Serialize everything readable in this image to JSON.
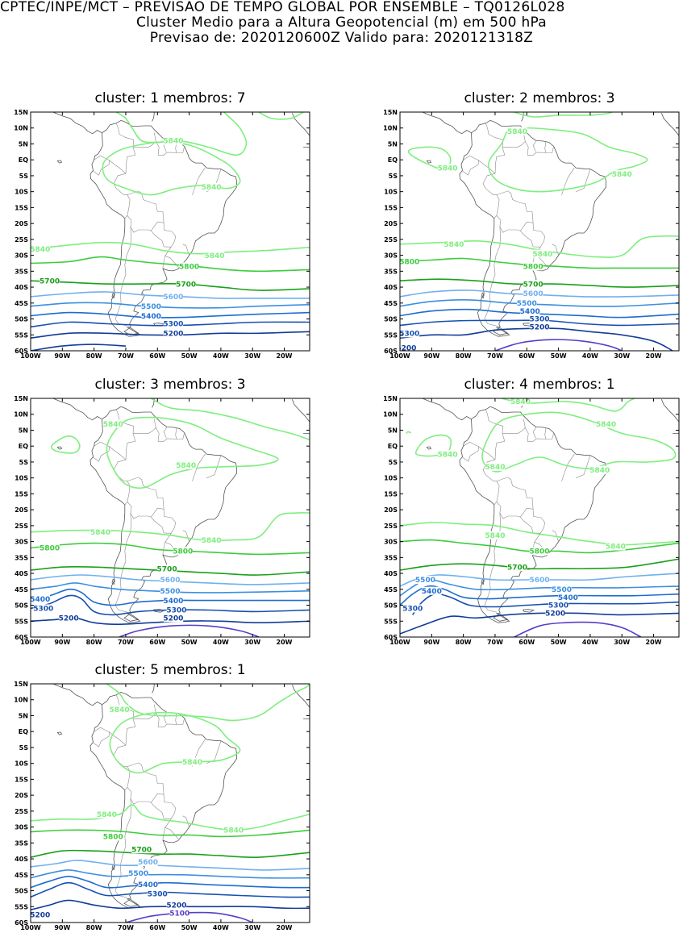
{
  "header": {
    "line1": "CPTEC/INPE/MCT – PREVISAO DE TEMPO GLOBAL POR ENSEMBLE – TQ0126L028",
    "line2": "Cluster Medio para a Altura Geopotencial (m) em 500 hPa",
    "line3": "Previsao de: 2020120600Z    Valido para: 2020121318Z"
  },
  "axes": {
    "lat_labels": [
      "15N",
      "10N",
      "5N",
      "EQ",
      "5S",
      "10S",
      "15S",
      "20S",
      "25S",
      "30S",
      "35S",
      "40S",
      "45S",
      "50S",
      "55S",
      "60S"
    ],
    "lat_values": [
      15,
      10,
      5,
      0,
      -5,
      -10,
      -15,
      -20,
      -25,
      -30,
      -35,
      -40,
      -45,
      -50,
      -55,
      -60
    ],
    "lon_labels": [
      "100W",
      "90W",
      "80W",
      "70W",
      "60W",
      "50W",
      "40W",
      "30W",
      "20W"
    ],
    "lon_values": [
      -100,
      -90,
      -80,
      -70,
      -60,
      -50,
      -40,
      -30,
      -20
    ],
    "lon_range": [
      -100,
      -12
    ],
    "lat_range": [
      -60,
      15
    ]
  },
  "colors": {
    "c5840": "#7fee7f",
    "c5800": "#3ccc3c",
    "c5700": "#1aa01a",
    "c5600": "#6fb0ee",
    "c5500": "#3c8fe0",
    "c5400": "#1d6cd0",
    "c5300": "#1650b0",
    "c5200": "#123c98",
    "c5100": "#5a3cc8",
    "coast": "#555555",
    "border": "#8a8a8a"
  },
  "panels": [
    {
      "title": "cluster: 1   membros: 7",
      "labels": [
        {
          "text": "5840",
          "lon": -55,
          "lat": 6,
          "c": "c5840"
        },
        {
          "text": "5840",
          "lon": -43,
          "lat": -8.5,
          "c": "c5840"
        },
        {
          "text": "5840",
          "lon": -97,
          "lat": -28,
          "c": "c5840"
        },
        {
          "text": "5840",
          "lon": -42,
          "lat": -30,
          "c": "c5840"
        },
        {
          "text": "5800",
          "lon": -50,
          "lat": -33.5,
          "c": "c5800"
        },
        {
          "text": "5700",
          "lon": -94,
          "lat": -38,
          "c": "c5700"
        },
        {
          "text": "5700",
          "lon": -51,
          "lat": -39,
          "c": "c5700"
        },
        {
          "text": "5600",
          "lon": -55,
          "lat": -43,
          "c": "c5600"
        },
        {
          "text": "5500",
          "lon": -62,
          "lat": -46,
          "c": "c5500"
        },
        {
          "text": "5400",
          "lon": -62,
          "lat": -49,
          "c": "c5400"
        },
        {
          "text": "5300",
          "lon": -55,
          "lat": -51.5,
          "c": "c5300"
        },
        {
          "text": "5200",
          "lon": -55,
          "lat": -54.5,
          "c": "c5200"
        }
      ]
    },
    {
      "title": "cluster: 2   membros: 3",
      "labels": [
        {
          "text": "5840",
          "lon": -63,
          "lat": 9,
          "c": "c5840"
        },
        {
          "text": "5840",
          "lon": -85,
          "lat": -2.5,
          "c": "c5840"
        },
        {
          "text": "5840",
          "lon": -30,
          "lat": -4.5,
          "c": "c5840"
        },
        {
          "text": "5840",
          "lon": -83,
          "lat": -26.5,
          "c": "c5840"
        },
        {
          "text": "5840",
          "lon": -55,
          "lat": -29.5,
          "c": "c5840"
        },
        {
          "text": "5800",
          "lon": -97,
          "lat": -32,
          "c": "c5800"
        },
        {
          "text": "5800",
          "lon": -58,
          "lat": -33.5,
          "c": "c5800"
        },
        {
          "text": "5700",
          "lon": -58,
          "lat": -39,
          "c": "c5700"
        },
        {
          "text": "5600",
          "lon": -58,
          "lat": -42,
          "c": "c5600"
        },
        {
          "text": "5500",
          "lon": -60,
          "lat": -45,
          "c": "c5500"
        },
        {
          "text": "5400",
          "lon": -59,
          "lat": -47.5,
          "c": "c5400"
        },
        {
          "text": "5300",
          "lon": -56,
          "lat": -50,
          "c": "c5300"
        },
        {
          "text": "5300",
          "lon": -97,
          "lat": -54.5,
          "c": "c5300"
        },
        {
          "text": "5200",
          "lon": -56,
          "lat": -52.5,
          "c": "c5200"
        },
        {
          "text": "5200",
          "lon": -98,
          "lat": -59,
          "c": "c5200"
        }
      ]
    },
    {
      "title": "cluster: 3   membros: 3",
      "labels": [
        {
          "text": "5840",
          "lon": -74,
          "lat": 7,
          "c": "c5840"
        },
        {
          "text": "5840",
          "lon": -51,
          "lat": -6,
          "c": "c5840"
        },
        {
          "text": "5840",
          "lon": -78,
          "lat": -27,
          "c": "c5840"
        },
        {
          "text": "5840",
          "lon": -43,
          "lat": -29.5,
          "c": "c5840"
        },
        {
          "text": "5800",
          "lon": -94,
          "lat": -32,
          "c": "c5800"
        },
        {
          "text": "5800",
          "lon": -52,
          "lat": -33,
          "c": "c5800"
        },
        {
          "text": "5700",
          "lon": -57,
          "lat": -38.5,
          "c": "c5700"
        },
        {
          "text": "5600",
          "lon": -56,
          "lat": -42,
          "c": "c5600"
        },
        {
          "text": "5500",
          "lon": -56,
          "lat": -45.5,
          "c": "c5500"
        },
        {
          "text": "5400",
          "lon": -97,
          "lat": -48,
          "c": "c5400"
        },
        {
          "text": "5400",
          "lon": -55,
          "lat": -48.5,
          "c": "c5400"
        },
        {
          "text": "5300",
          "lon": -96,
          "lat": -51,
          "c": "c5300"
        },
        {
          "text": "5300",
          "lon": -54,
          "lat": -51.5,
          "c": "c5300"
        },
        {
          "text": "5200",
          "lon": -88,
          "lat": -54,
          "c": "c5200"
        },
        {
          "text": "5200",
          "lon": -55,
          "lat": -54,
          "c": "c5200"
        }
      ]
    },
    {
      "title": "cluster: 4   membros: 1",
      "labels": [
        {
          "text": "5840",
          "lon": -62,
          "lat": 14,
          "c": "c5840"
        },
        {
          "text": "5840",
          "lon": -35,
          "lat": 7,
          "c": "c5840"
        },
        {
          "text": "5840",
          "lon": -85,
          "lat": -2.5,
          "c": "c5840"
        },
        {
          "text": "5840",
          "lon": -70,
          "lat": -6.5,
          "c": "c5840"
        },
        {
          "text": "5840",
          "lon": -37,
          "lat": -7.5,
          "c": "c5840"
        },
        {
          "text": "5840",
          "lon": -70,
          "lat": -28,
          "c": "c5840"
        },
        {
          "text": "5840",
          "lon": -32,
          "lat": -31.5,
          "c": "c5840"
        },
        {
          "text": "5800",
          "lon": -56,
          "lat": -33,
          "c": "c5800"
        },
        {
          "text": "5700",
          "lon": -63,
          "lat": -38,
          "c": "c5700"
        },
        {
          "text": "5600",
          "lon": -56,
          "lat": -42,
          "c": "c5600"
        },
        {
          "text": "5500",
          "lon": -92,
          "lat": -42,
          "c": "c5500"
        },
        {
          "text": "5500",
          "lon": -49,
          "lat": -45,
          "c": "c5500"
        },
        {
          "text": "5400",
          "lon": -90,
          "lat": -45.5,
          "c": "c5400"
        },
        {
          "text": "5400",
          "lon": -47,
          "lat": -47.5,
          "c": "c5400"
        },
        {
          "text": "5300",
          "lon": -50,
          "lat": -50,
          "c": "c5300"
        },
        {
          "text": "5300",
          "lon": -96,
          "lat": -51,
          "c": "c5300"
        },
        {
          "text": "5200",
          "lon": -51,
          "lat": -52.5,
          "c": "c5200"
        }
      ]
    },
    {
      "title": "cluster: 5   membros: 1",
      "labels": [
        {
          "text": "5840",
          "lon": -72,
          "lat": 7,
          "c": "c5840"
        },
        {
          "text": "5840",
          "lon": -49,
          "lat": -9.5,
          "c": "c5840"
        },
        {
          "text": "5840",
          "lon": -76,
          "lat": -26,
          "c": "c5840"
        },
        {
          "text": "5840",
          "lon": -36,
          "lat": -31,
          "c": "c5840"
        },
        {
          "text": "5800",
          "lon": -74,
          "lat": -33,
          "c": "c5800"
        },
        {
          "text": "5700",
          "lon": -65,
          "lat": -37,
          "c": "c5700"
        },
        {
          "text": "5600",
          "lon": -63,
          "lat": -41,
          "c": "c5600"
        },
        {
          "text": "5500",
          "lon": -66,
          "lat": -44.5,
          "c": "c5500"
        },
        {
          "text": "5400",
          "lon": -63,
          "lat": -48,
          "c": "c5400"
        },
        {
          "text": "5300",
          "lon": -60,
          "lat": -51,
          "c": "c5300"
        },
        {
          "text": "5200",
          "lon": -54,
          "lat": -54.5,
          "c": "c5200"
        },
        {
          "text": "5100",
          "lon": -53,
          "lat": -57,
          "c": "c5100"
        },
        {
          "text": "5200",
          "lon": -97,
          "lat": -57.5,
          "c": "c5200"
        }
      ]
    }
  ]
}
